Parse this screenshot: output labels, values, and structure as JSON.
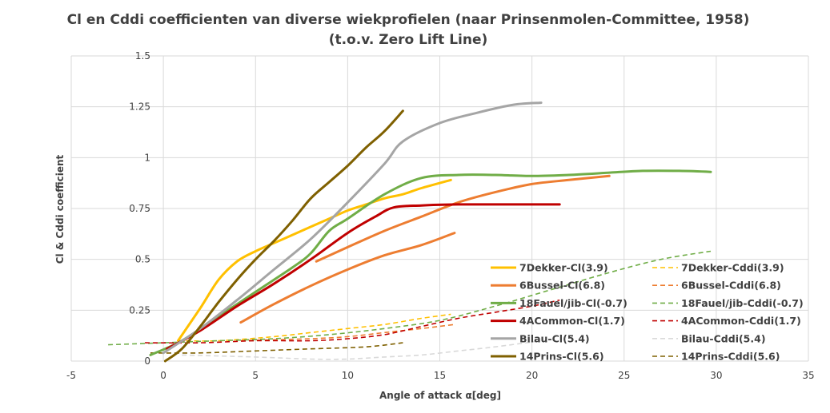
{
  "chart_data": {
    "type": "line",
    "title": "Cl en Cddi  coefficienten van diverse wiekprofielen (naar Prinsenmolen-Committee,  1958)",
    "subtitle": "(t.o.v. Zero Lift Line)",
    "xlabel": "Angle of attack α[deg]",
    "ylabel": "Cl & Cddi coefficient",
    "xlim": [
      -5,
      35
    ],
    "ylim": [
      0,
      1.5
    ],
    "x_ticks": [
      "-5",
      "0",
      "5",
      "10",
      "15",
      "20",
      "25",
      "30",
      "35"
    ],
    "y_ticks": [
      "0",
      "0.25",
      "0.5",
      "0.75",
      "1",
      "1.25",
      "1.5"
    ],
    "grid": "vertical and horizontal major gridlines",
    "legend_position": "bottom-right, inside plot",
    "series": [
      {
        "name": "7Dekker-Cl(3.9)",
        "color": "#ffc000",
        "dashed": false,
        "x": [
          0.8,
          2,
          3,
          4,
          5,
          6,
          7,
          8,
          9,
          10,
          11,
          12,
          13,
          14,
          15.6
        ],
        "y": [
          0.1,
          0.26,
          0.4,
          0.49,
          0.54,
          0.58,
          0.62,
          0.66,
          0.7,
          0.74,
          0.77,
          0.8,
          0.82,
          0.85,
          0.89
        ]
      },
      {
        "name": "7Dekker-Cddi(3.9)",
        "color": "#ffc000",
        "dashed": true,
        "x": [
          0.8,
          3,
          6,
          8,
          10,
          12,
          14,
          15.6
        ],
        "y": [
          0.1,
          0.1,
          0.12,
          0.14,
          0.16,
          0.18,
          0.21,
          0.23
        ]
      },
      {
        "name": "6Bussel-Cl(6.8)",
        "color": "#ed7d31",
        "dashed": false,
        "x": [
          4.2,
          6,
          8,
          10,
          12,
          14,
          15.8
        ],
        "y": [
          0.19,
          0.28,
          0.37,
          0.45,
          0.52,
          0.57,
          0.63
        ]
      },
      {
        "name": "6Bussel-Cl(6.8)",
        "color": "#ed7d31",
        "dashed": false,
        "x": [
          8.3,
          10,
          12,
          14,
          16,
          18,
          20,
          22,
          24.2
        ],
        "y": [
          0.49,
          0.56,
          0.64,
          0.71,
          0.78,
          0.83,
          0.87,
          0.89,
          0.91
        ]
      },
      {
        "name": "6Bussel-Cddi(6.8)",
        "color": "#ed7d31",
        "dashed": true,
        "x": [
          4.2,
          8,
          10,
          12,
          14,
          15.8
        ],
        "y": [
          0.1,
          0.11,
          0.12,
          0.14,
          0.16,
          0.18
        ]
      },
      {
        "name": "18Fauel/jib-Cl(-0.7)",
        "color": "#70ad47",
        "dashed": false,
        "x": [
          -0.7,
          1,
          3,
          5,
          7,
          8,
          9,
          10,
          12,
          14,
          16,
          18,
          20,
          22,
          24,
          26,
          28,
          29.7
        ],
        "y": [
          0.03,
          0.1,
          0.22,
          0.34,
          0.46,
          0.53,
          0.64,
          0.7,
          0.82,
          0.9,
          0.915,
          0.915,
          0.91,
          0.915,
          0.925,
          0.935,
          0.935,
          0.93
        ]
      },
      {
        "name": "18Fauel/jib-Cddi(-0.7)",
        "color": "#70ad47",
        "dashed": true,
        "x": [
          -3,
          0,
          3,
          6,
          9,
          12,
          15,
          18,
          21,
          24,
          27,
          29.7
        ],
        "y": [
          0.08,
          0.09,
          0.1,
          0.11,
          0.13,
          0.16,
          0.2,
          0.27,
          0.35,
          0.43,
          0.5,
          0.54
        ]
      },
      {
        "name": "4ACommon-Cl(1.7)",
        "color": "#c00000",
        "dashed": false,
        "x": [
          0.2,
          2,
          4,
          6,
          8,
          10,
          11.5,
          12.5,
          14,
          16,
          18,
          20,
          21.5
        ],
        "y": [
          0.06,
          0.15,
          0.27,
          0.38,
          0.5,
          0.63,
          0.71,
          0.755,
          0.765,
          0.77,
          0.77,
          0.77,
          0.77
        ]
      },
      {
        "name": "4ACommon-Cddi(1.7)",
        "color": "#c00000",
        "dashed": true,
        "x": [
          -1,
          2,
          5,
          8,
          10,
          12,
          14,
          16,
          18,
          20,
          21.5
        ],
        "y": [
          0.09,
          0.09,
          0.1,
          0.1,
          0.11,
          0.13,
          0.17,
          0.21,
          0.24,
          0.27,
          0.3
        ]
      },
      {
        "name": "Bilau-Cl(5.4)",
        "color": "#a5a5a5",
        "dashed": false,
        "x": [
          0,
          2,
          4,
          6,
          8,
          10,
          12,
          13,
          15,
          17,
          19,
          20.5
        ],
        "y": [
          0.04,
          0.16,
          0.3,
          0.45,
          0.6,
          0.78,
          0.97,
          1.08,
          1.17,
          1.22,
          1.26,
          1.27
        ]
      },
      {
        "name": "Bilau-Cddi(5.4)",
        "color": "#d9d9d9",
        "dashed": true,
        "x": [
          1,
          5,
          8,
          10,
          12,
          14,
          16,
          18,
          20.5
        ],
        "y": [
          0.03,
          0.02,
          0.01,
          0.01,
          0.02,
          0.03,
          0.05,
          0.07,
          0.1
        ]
      },
      {
        "name": "14Prins-Cl(5.6)",
        "color": "#7f6000",
        "dashed": false,
        "x": [
          0.1,
          1,
          2,
          3,
          4,
          5,
          6,
          7,
          8,
          9,
          10,
          11,
          12,
          13
        ],
        "y": [
          0.0,
          0.06,
          0.17,
          0.29,
          0.4,
          0.5,
          0.59,
          0.69,
          0.8,
          0.88,
          0.96,
          1.05,
          1.13,
          1.23
        ]
      },
      {
        "name": "14Prins-Cddi(5.6)",
        "color": "#7f6000",
        "dashed": true,
        "x": [
          -0.7,
          2,
          5,
          8,
          11,
          13
        ],
        "y": [
          0.04,
          0.04,
          0.05,
          0.06,
          0.07,
          0.09
        ]
      }
    ],
    "legend": [
      {
        "label": "7Dekker-Cl(3.9)",
        "color": "#ffc000",
        "dashed": false
      },
      {
        "label": "7Dekker-Cddi(3.9)",
        "color": "#ffc000",
        "dashed": true
      },
      {
        "label": "6Bussel-Cl(6.8)",
        "color": "#ed7d31",
        "dashed": false
      },
      {
        "label": "6Bussel-Cddi(6.8)",
        "color": "#ed7d31",
        "dashed": true
      },
      {
        "label": "18Fauel/jib-Cl(-0.7)",
        "color": "#70ad47",
        "dashed": false
      },
      {
        "label": "18Fauel/jib-Cddi(-0.7)",
        "color": "#70ad47",
        "dashed": true
      },
      {
        "label": "4ACommon-Cl(1.7)",
        "color": "#c00000",
        "dashed": false
      },
      {
        "label": "4ACommon-Cddi(1.7)",
        "color": "#c00000",
        "dashed": true
      },
      {
        "label": "Bilau-Cl(5.4)",
        "color": "#a5a5a5",
        "dashed": false
      },
      {
        "label": "Bilau-Cddi(5.4)",
        "color": "#d9d9d9",
        "dashed": true
      },
      {
        "label": "14Prins-Cl(5.6)",
        "color": "#7f6000",
        "dashed": false
      },
      {
        "label": "14Prins-Cddi(5.6)",
        "color": "#7f6000",
        "dashed": true
      }
    ]
  }
}
